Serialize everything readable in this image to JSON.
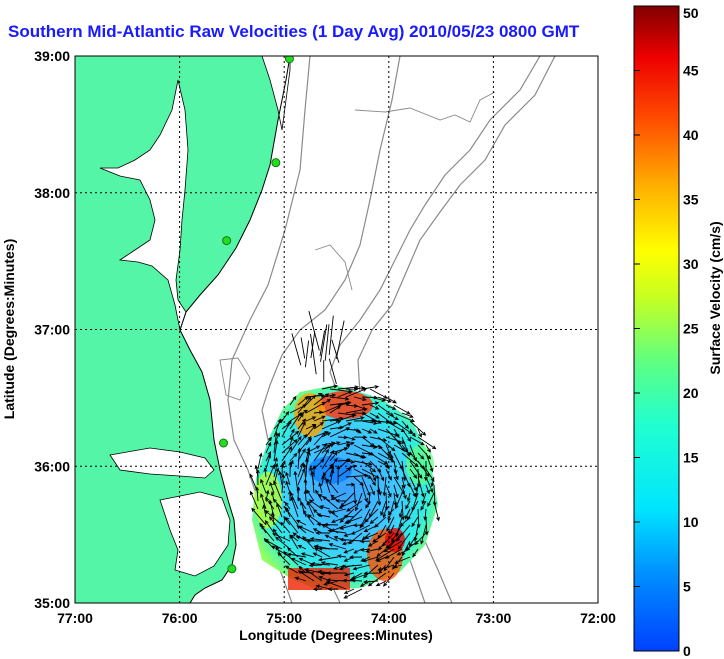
{
  "title": "Southern Mid-Atlantic Raw Velocities (1 Day Avg) 2010/05/23 0800 GMT",
  "map": {
    "xlabel": "Longitude (Degrees:Minutes)",
    "ylabel": "Latitude (Degrees:Minutes)",
    "x_ticks": [
      "77:00",
      "76:00",
      "75:00",
      "74:00",
      "73:00",
      "72:00"
    ],
    "y_ticks": [
      "39:00",
      "38:00",
      "37:00",
      "36:00",
      "35:00"
    ],
    "xlim": [
      -77,
      -72
    ],
    "ylim": [
      35,
      39
    ],
    "grid": true,
    "colors": {
      "land": "#55f5a8",
      "coastline": "#000000",
      "bathymetry": "#8a8a8a",
      "grid": "#000000",
      "station": "#22dd22"
    },
    "stations": [
      {
        "lon": -74.95,
        "lat": 38.98
      },
      {
        "lon": -75.08,
        "lat": 38.22
      },
      {
        "lon": -75.55,
        "lat": 37.65
      },
      {
        "lon": -75.58,
        "lat": 36.17
      },
      {
        "lon": -75.5,
        "lat": 35.25
      }
    ]
  },
  "colorbar": {
    "label": "Surface Velocity (cm/s)",
    "ticks": [
      "0",
      "5",
      "10",
      "15",
      "20",
      "25",
      "30",
      "35",
      "40",
      "45",
      "50"
    ],
    "min": 0,
    "max": 50
  }
}
